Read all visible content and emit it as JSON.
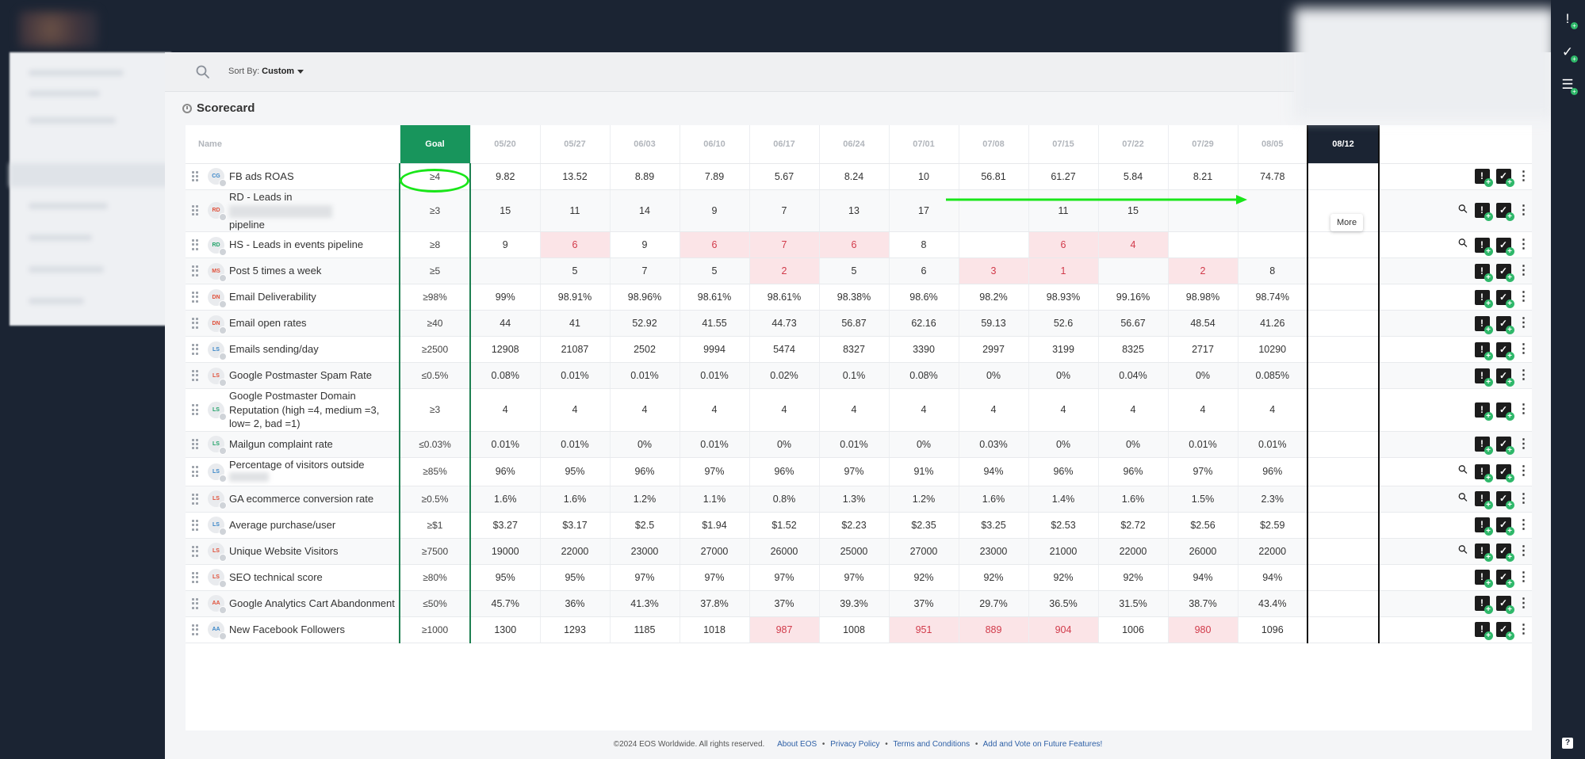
{
  "toolbar": {
    "sort_label": "Sort By:",
    "sort_value": "Custom"
  },
  "scorecard_title": "Scorecard",
  "columns": {
    "name": "Name",
    "goal": "Goal",
    "weeks": [
      "05/20",
      "05/27",
      "06/03",
      "06/10",
      "06/17",
      "06/24",
      "07/01",
      "07/08",
      "07/15",
      "07/22",
      "07/29",
      "08/05"
    ],
    "current_week": "08/12"
  },
  "rows": [
    {
      "owner": "CG",
      "owner_color": "#3a86c8",
      "name": "FB ads ROAS",
      "goal": "≥4",
      "values": [
        "9.82",
        "13.52",
        "8.89",
        "7.89",
        "5.67",
        "8.24",
        "10",
        "56.81",
        "61.27",
        "5.84",
        "8.21",
        "74.78"
      ],
      "bad": [],
      "link": false
    },
    {
      "owner": "RD",
      "owner_color": "#e0503a",
      "name": "RD - Leads in",
      "name2": "pipeline",
      "goal": "≥3",
      "values": [
        "15",
        "11",
        "14",
        "9",
        "7",
        "13",
        "17",
        "",
        "11",
        "15",
        "",
        ""
      ],
      "bad": [],
      "link": true
    },
    {
      "owner": "RD",
      "owner_color": "#23a36a",
      "name": "HS - Leads in events pipeline",
      "goal": "≥8",
      "values": [
        "9",
        "6",
        "9",
        "6",
        "7",
        "6",
        "8",
        "",
        "6",
        "4",
        "",
        ""
      ],
      "bad": [
        1,
        3,
        4,
        5,
        8,
        9
      ],
      "link": true
    },
    {
      "owner": "MS",
      "owner_color": "#e0503a",
      "name": "Post 5 times a week",
      "goal": "≥5",
      "values": [
        "",
        "5",
        "7",
        "5",
        "2",
        "5",
        "6",
        "3",
        "1",
        "",
        "2",
        "8"
      ],
      "bad": [
        4,
        7,
        8,
        10
      ],
      "link": false
    },
    {
      "owner": "DN",
      "owner_color": "#e0503a",
      "name": "Email Deliverability",
      "goal": "≥98%",
      "values": [
        "99%",
        "98.91%",
        "98.96%",
        "98.61%",
        "98.61%",
        "98.38%",
        "98.6%",
        "98.2%",
        "98.93%",
        "99.16%",
        "98.98%",
        "98.74%"
      ],
      "bad": [],
      "link": false
    },
    {
      "owner": "DN",
      "owner_color": "#e0503a",
      "name": "Email open rates",
      "goal": "≥40",
      "values": [
        "44",
        "41",
        "52.92",
        "41.55",
        "44.73",
        "56.87",
        "62.16",
        "59.13",
        "52.6",
        "56.67",
        "48.54",
        "41.26"
      ],
      "bad": [],
      "link": false
    },
    {
      "owner": "LS",
      "owner_color": "#3a86c8",
      "name": "Emails sending/day",
      "goal": "≥2500",
      "values": [
        "12908",
        "21087",
        "2502",
        "9994",
        "5474",
        "8327",
        "3390",
        "2997",
        "3199",
        "8325",
        "2717",
        "10290"
      ],
      "bad": [],
      "link": false
    },
    {
      "owner": "LS",
      "owner_color": "#e0503a",
      "name": "Google Postmaster Spam Rate",
      "goal": "≤0.5%",
      "values": [
        "0.08%",
        "0.01%",
        "0.01%",
        "0.01%",
        "0.02%",
        "0.1%",
        "0.08%",
        "0%",
        "0%",
        "0.04%",
        "0%",
        "0.085%"
      ],
      "bad": [],
      "link": false
    },
    {
      "owner": "LS",
      "owner_color": "#23a36a",
      "name": "Google Postmaster Domain Reputation (high =4, medium =3, low= 2, bad =1)",
      "goal": "≥3",
      "values": [
        "4",
        "4",
        "4",
        "4",
        "4",
        "4",
        "4",
        "4",
        "4",
        "4",
        "4",
        "4"
      ],
      "bad": [],
      "link": false
    },
    {
      "owner": "LS",
      "owner_color": "#23a36a",
      "name": "Mailgun complaint rate",
      "goal": "≤0.03%",
      "values": [
        "0.01%",
        "0.01%",
        "0%",
        "0.01%",
        "0%",
        "0.01%",
        "0%",
        "0.03%",
        "0%",
        "0%",
        "0.01%",
        "0.01%"
      ],
      "bad": [],
      "link": false
    },
    {
      "owner": "LS",
      "owner_color": "#3a86c8",
      "name": "Percentage of visitors outside",
      "name2": "",
      "goal": "≥85%",
      "values": [
        "96%",
        "95%",
        "96%",
        "97%",
        "96%",
        "97%",
        "91%",
        "94%",
        "96%",
        "96%",
        "97%",
        "96%"
      ],
      "bad": [],
      "link": true
    },
    {
      "owner": "LS",
      "owner_color": "#e0503a",
      "name": "GA ecommerce conversion rate",
      "goal": "≥0.5%",
      "values": [
        "1.6%",
        "1.6%",
        "1.2%",
        "1.1%",
        "0.8%",
        "1.3%",
        "1.2%",
        "1.6%",
        "1.4%",
        "1.6%",
        "1.5%",
        "2.3%"
      ],
      "bad": [],
      "link": true
    },
    {
      "owner": "LS",
      "owner_color": "#3a86c8",
      "name": "Average purchase/user",
      "goal": "≥$1",
      "values": [
        "$3.27",
        "$3.17",
        "$2.5",
        "$1.94",
        "$1.52",
        "$2.23",
        "$2.35",
        "$3.25",
        "$2.53",
        "$2.72",
        "$2.56",
        "$2.59"
      ],
      "bad": [],
      "link": false
    },
    {
      "owner": "LS",
      "owner_color": "#e0503a",
      "name": "Unique Website Visitors",
      "goal": "≥7500",
      "values": [
        "19000",
        "22000",
        "23000",
        "27000",
        "26000",
        "25000",
        "27000",
        "23000",
        "21000",
        "22000",
        "26000",
        "22000"
      ],
      "bad": [],
      "link": true
    },
    {
      "owner": "LS",
      "owner_color": "#e0503a",
      "name": "SEO technical score",
      "goal": "≥80%",
      "values": [
        "95%",
        "95%",
        "97%",
        "97%",
        "97%",
        "97%",
        "92%",
        "92%",
        "92%",
        "92%",
        "94%",
        "94%"
      ],
      "bad": [],
      "link": false
    },
    {
      "owner": "AA",
      "owner_color": "#e0503a",
      "name": "Google Analytics Cart Abandonment",
      "goal": "≤50%",
      "values": [
        "45.7%",
        "36%",
        "41.3%",
        "37.8%",
        "37%",
        "39.3%",
        "37%",
        "29.7%",
        "36.5%",
        "31.5%",
        "38.7%",
        "43.4%"
      ],
      "bad": [],
      "link": false
    },
    {
      "owner": "AA",
      "owner_color": "#3a86c8",
      "name": "New Facebook Followers",
      "goal": "≥1000",
      "values": [
        "1300",
        "1293",
        "1185",
        "1018",
        "987",
        "1008",
        "951",
        "889",
        "904",
        "1006",
        "980",
        "1096"
      ],
      "bad": [
        4,
        6,
        7,
        8,
        10
      ],
      "link": false
    }
  ],
  "row_actions": {
    "issue_glyph": "!",
    "todo_glyph": "✓",
    "more_glyph": "⋮",
    "link_icon": "link-icon"
  },
  "tooltip": "More",
  "footer": {
    "copyright": "©2024 EOS Worldwide. All rights reserved.",
    "links": [
      "About EOS",
      "Privacy Policy",
      "Terms and Conditions",
      "Add and Vote on Future Features!"
    ]
  },
  "colors": {
    "goal_header": "#18955c",
    "off_track_bg": "#fbe4e7",
    "off_track_text": "#d13a4a",
    "annotation": "#19e619",
    "nav_dark": "#1b2433"
  }
}
